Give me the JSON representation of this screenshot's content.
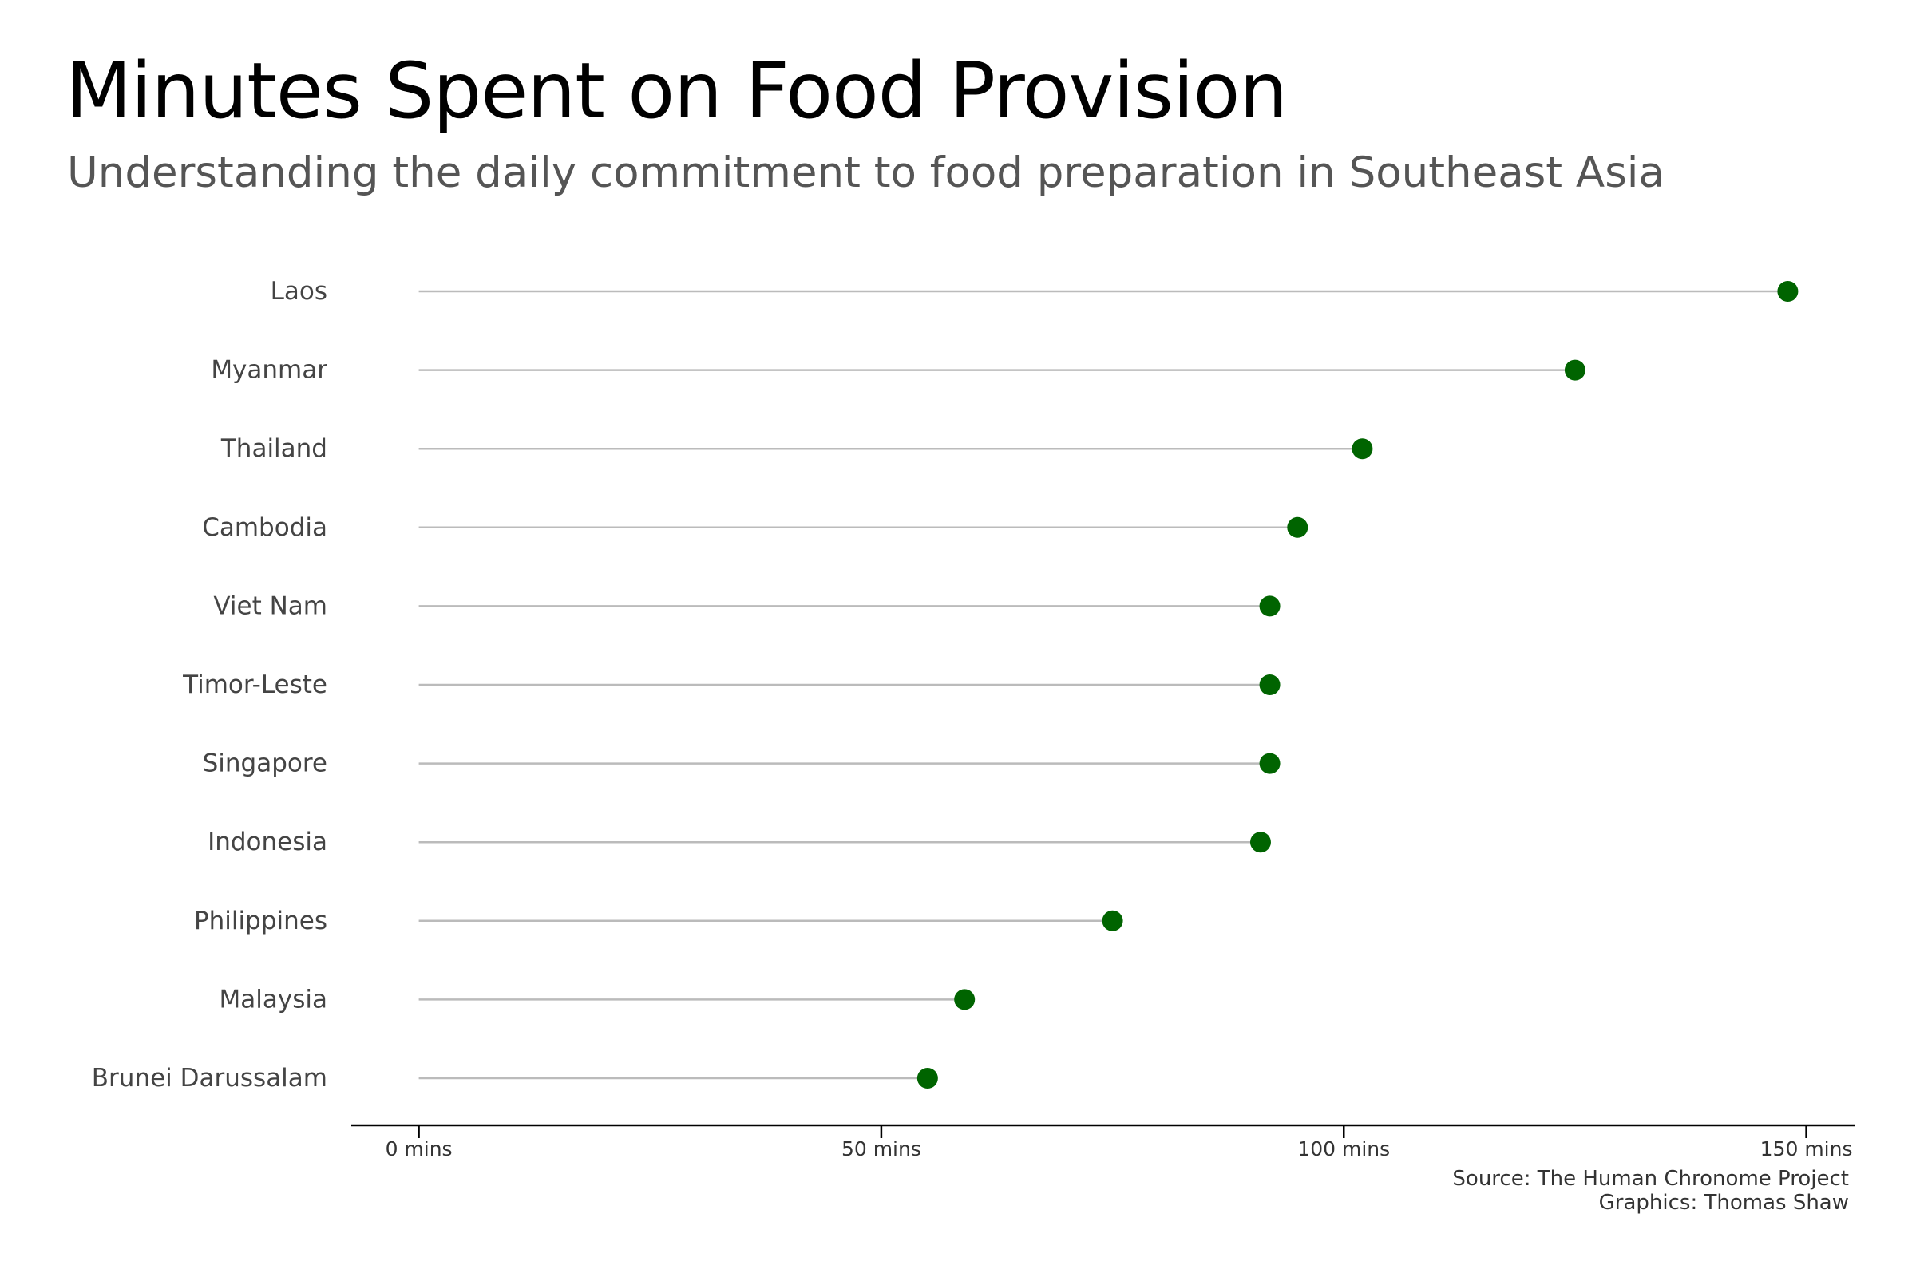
{
  "title": "Minutes Spent on Food Provision",
  "subtitle": "Understanding the daily commitment to food preparation in Southeast Asia",
  "source": "Source: The Human Chronome Project",
  "credit": "Graphics: Thomas Shaw",
  "colors": {
    "dot": "#006400",
    "stem": "#bbbbbb",
    "axis": "#000000",
    "label": "#444444"
  },
  "chart_data": {
    "type": "lollipop",
    "orientation": "horizontal",
    "categories": [
      "Laos",
      "Myanmar",
      "Thailand",
      "Cambodia",
      "Viet Nam",
      "Timor-Leste",
      "Singapore",
      "Indonesia",
      "Philippines",
      "Malaysia",
      "Brunei Darussalam"
    ],
    "values": [
      148,
      125,
      102,
      95,
      92,
      92,
      92,
      91,
      75,
      59,
      55
    ],
    "x_ticks": [
      0,
      50,
      100,
      150
    ],
    "x_tick_labels": [
      "0 mins",
      "50 mins",
      "100 mins",
      "150 mins"
    ],
    "xlim": [
      -7.3,
      155.3
    ],
    "grid": false
  }
}
